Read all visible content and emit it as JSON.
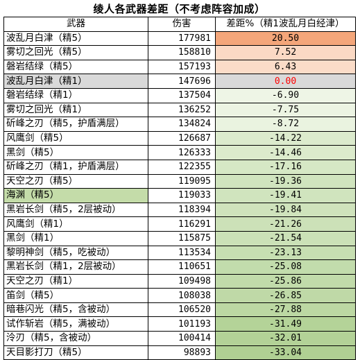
{
  "title": "绫人各武器差距（不考虑阵容加成）",
  "headers": [
    "武器",
    "伤害",
    "差距%（精1波乱月白经津）"
  ],
  "rows": [
    {
      "weapon": "波乱月白津（精5）",
      "damage": "177981",
      "diff": "20.50",
      "weapon_bg": "#ffffff",
      "diff_bg": "#f4a67a",
      "diff_color": "#000000"
    },
    {
      "weapon": "雾切之回光（精5）",
      "damage": "158810",
      "diff": "7.52",
      "weapon_bg": "#ffffff",
      "diff_bg": "#fbd9c4",
      "diff_color": "#000000"
    },
    {
      "weapon": "磐岩结绿（精5）",
      "damage": "157193",
      "diff": "6.43",
      "weapon_bg": "#ffffff",
      "diff_bg": "#fbdcc8",
      "diff_color": "#000000"
    },
    {
      "weapon": "波乱月白津（精1）",
      "damage": "147696",
      "diff": "0.00",
      "weapon_bg": "#d9d9d9",
      "diff_bg": "#d9d9d9",
      "diff_color": "#ff0000"
    },
    {
      "weapon": "磐岩结绿（精1）",
      "damage": "137504",
      "diff": "-6.90",
      "weapon_bg": "#ffffff",
      "diff_bg": "#eef5e6",
      "diff_color": "#000000"
    },
    {
      "weapon": "雾切之回光（精1）",
      "damage": "136252",
      "diff": "-7.75",
      "weapon_bg": "#ffffff",
      "diff_bg": "#ecf4e3",
      "diff_color": "#000000"
    },
    {
      "weapon": "斫峰之刃（精5，护盾满层）",
      "damage": "134824",
      "diff": "-8.72",
      "weapon_bg": "#ffffff",
      "diff_bg": "#eaf3e0",
      "diff_color": "#000000"
    },
    {
      "weapon": "风鹰剑（精5）",
      "damage": "126687",
      "diff": "-14.22",
      "weapon_bg": "#ffffff",
      "diff_bg": "#dcebcd",
      "diff_color": "#000000"
    },
    {
      "weapon": "黑剑（精5）",
      "damage": "126333",
      "diff": "-14.46",
      "weapon_bg": "#ffffff",
      "diff_bg": "#dcebcc",
      "diff_color": "#000000"
    },
    {
      "weapon": "斫峰之刃（精1，护盾满层）",
      "damage": "122355",
      "diff": "-17.16",
      "weapon_bg": "#ffffff",
      "diff_bg": "#d6e8c5",
      "diff_color": "#000000"
    },
    {
      "weapon": "天空之刃（精5）",
      "damage": "119095",
      "diff": "-19.36",
      "weapon_bg": "#ffffff",
      "diff_bg": "#d0e4be",
      "diff_color": "#000000"
    },
    {
      "weapon": "海渊（精5）",
      "damage": "119033",
      "diff": "-19.41",
      "weapon_bg": "#c4dca9",
      "diff_bg": "#d0e4be",
      "diff_color": "#000000"
    },
    {
      "weapon": "黑岩长剑（精5，2层被动）",
      "damage": "118394",
      "diff": "-19.84",
      "weapon_bg": "#ffffff",
      "diff_bg": "#cfe3bc",
      "diff_color": "#000000"
    },
    {
      "weapon": "风鹰剑（精1）",
      "damage": "116291",
      "diff": "-21.26",
      "weapon_bg": "#ffffff",
      "diff_bg": "#cce1b8",
      "diff_color": "#000000"
    },
    {
      "weapon": "黑剑（精1）",
      "damage": "115875",
      "diff": "-21.54",
      "weapon_bg": "#ffffff",
      "diff_bg": "#cbe1b7",
      "diff_color": "#000000"
    },
    {
      "weapon": "黎明神剑（精5，吃被动）",
      "damage": "113534",
      "diff": "-23.13",
      "weapon_bg": "#ffffff",
      "diff_bg": "#c7dfb2",
      "diff_color": "#000000"
    },
    {
      "weapon": "黑岩长剑（精1，2层被动）",
      "damage": "110651",
      "diff": "-25.08",
      "weapon_bg": "#ffffff",
      "diff_bg": "#c2dcac",
      "diff_color": "#000000"
    },
    {
      "weapon": "天空之刃（精1）",
      "damage": "109498",
      "diff": "-25.86",
      "weapon_bg": "#ffffff",
      "diff_bg": "#c1dbaa",
      "diff_color": "#000000"
    },
    {
      "weapon": "笛剑（精5）",
      "damage": "108038",
      "diff": "-26.85",
      "weapon_bg": "#ffffff",
      "diff_bg": "#bfd9a7",
      "diff_color": "#000000"
    },
    {
      "weapon": "暗巷闪光（精5，含被动）",
      "damage": "106520",
      "diff": "-27.88",
      "weapon_bg": "#ffffff",
      "diff_bg": "#bcd8a3",
      "diff_color": "#000000"
    },
    {
      "weapon": "试作斩岩（精5，满被动）",
      "damage": "101193",
      "diff": "-31.49",
      "weapon_bg": "#ffffff",
      "diff_bg": "#b4d398",
      "diff_color": "#000000"
    },
    {
      "weapon": "泠刃（精5，含被动）",
      "damage": "100414",
      "diff": "-32.01",
      "weapon_bg": "#ffffff",
      "diff_bg": "#b3d297",
      "diff_color": "#000000"
    },
    {
      "weapon": "天目影打刀（精5）",
      "damage": "98893",
      "diff": "-33.04",
      "weapon_bg": "#ffffff",
      "diff_bg": "#b0d093",
      "diff_color": "#000000"
    }
  ]
}
